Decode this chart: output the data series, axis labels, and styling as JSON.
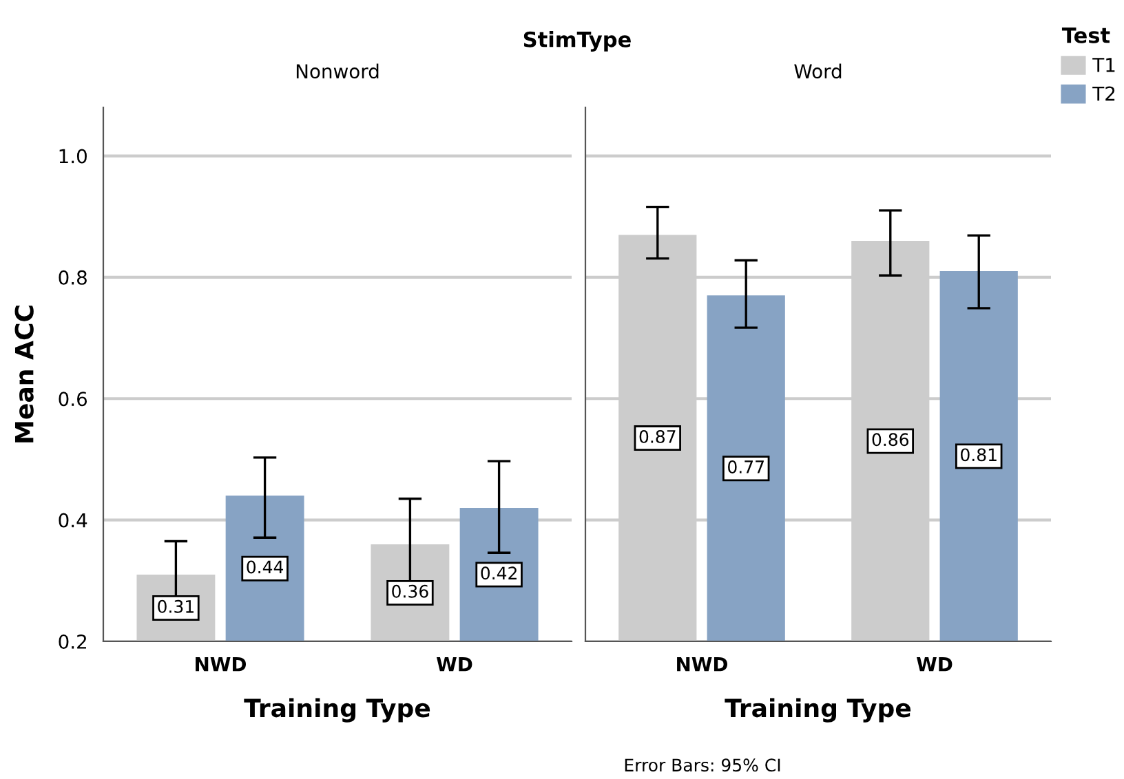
{
  "chart_data": [
    {
      "type": "bar",
      "title": "StimType",
      "subtitle": "Nonword",
      "xlabel": "Training Type",
      "ylabel": "Mean ACC",
      "categories": [
        "NWD",
        "WD"
      ],
      "series": [
        {
          "name": "T1",
          "color": "#cccccc",
          "values": [
            0.31,
            0.36
          ],
          "errors": [
            [
              0.249,
              0.365
            ],
            [
              0.29,
              0.435
            ]
          ]
        },
        {
          "name": "T2",
          "color": "#87a3c4",
          "values": [
            0.44,
            0.42
          ],
          "errors": [
            [
              0.371,
              0.503
            ],
            [
              0.346,
              0.497
            ]
          ]
        }
      ],
      "ylim": [
        0.2,
        1.08
      ],
      "yticks": [
        {
          "value": 0.2,
          "label": "0.2"
        },
        {
          "value": 0.4,
          "label": "0.4"
        },
        {
          "value": 0.6,
          "label": "0.6"
        },
        {
          "value": 0.8,
          "label": "0.8"
        },
        {
          "value": 1.0,
          "label": "1.0"
        }
      ],
      "grid": "y",
      "data_labels": true,
      "legend": "top right",
      "legend_title": "Test"
    },
    {
      "type": "bar",
      "subtitle": "Word",
      "xlabel": "Training Type",
      "categories": [
        "NWD",
        "WD"
      ],
      "series": [
        {
          "color": "#cccccc",
          "values": [
            0.87,
            0.86
          ],
          "errors": [
            [
              0.831,
              0.916
            ],
            [
              0.803,
              0.91
            ]
          ]
        },
        {
          "color": "#87a3c4",
          "values": [
            0.77,
            0.81
          ],
          "errors": [
            [
              0.717,
              0.828
            ],
            [
              0.749,
              0.869
            ]
          ]
        }
      ],
      "ylim": [
        0.2,
        1.08
      ],
      "yticks": [
        0.2,
        0.4,
        0.6,
        0.8,
        1.0
      ],
      "grid": "y",
      "data_labels": true,
      "tick_labels": "x",
      "annotations": [
        "Error Bars: 95% CI"
      ]
    }
  ]
}
